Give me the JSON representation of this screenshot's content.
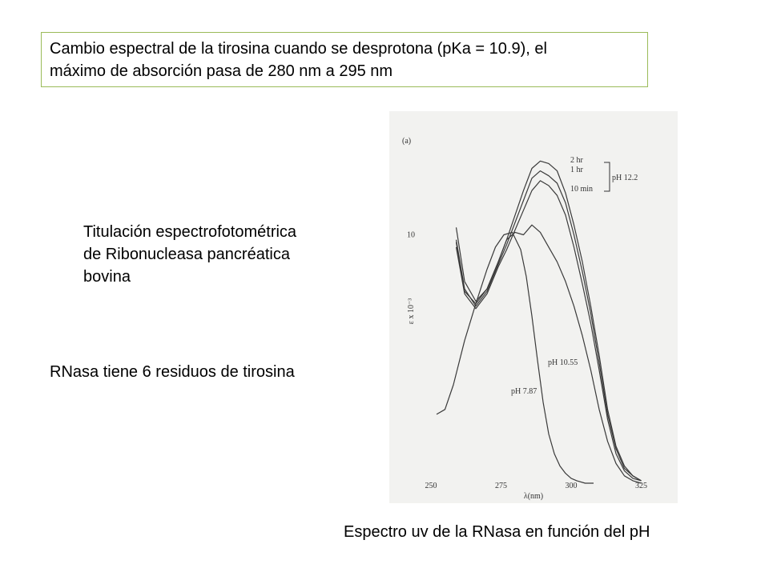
{
  "header_box": {
    "line1": "Cambio espectral de la tirosina cuando se desprotona (pKa = 10.9), el",
    "line2": "máximo de absorción pasa de 280 nm a 295 nm"
  },
  "titulacion": {
    "line1": "Titulación espectrofotométrica",
    "line2": "de Ribonucleasa pancréatica",
    "line3": "bovina"
  },
  "rnasa_note": "RNasa tiene 6 residuos de tirosina",
  "caption": "Espectro uv de la RNasa en función del pH",
  "chart_data": {
    "type": "line",
    "panel_label": "(a)",
    "xlabel": "λ(nm)",
    "ylabel": "ε x 10⁻³",
    "x_ticks": [
      "250",
      "275",
      "300",
      "325"
    ],
    "y_ticks": [
      "10"
    ],
    "xlim": [
      250,
      326
    ],
    "ylim": [
      0,
      13.5
    ],
    "series": [
      {
        "name": "2 hr",
        "x": [
          259,
          262,
          266,
          270,
          274,
          277,
          280,
          283,
          286,
          289,
          292,
          295,
          298,
          301,
          304,
          307,
          310,
          313,
          316,
          319,
          322,
          325
        ],
        "y": [
          10.4,
          8.2,
          7.4,
          7.9,
          9.0,
          9.9,
          10.9,
          11.9,
          12.8,
          13.1,
          13.0,
          12.7,
          11.8,
          10.5,
          9.0,
          7.2,
          5.2,
          3.0,
          1.5,
          0.7,
          0.3,
          0.1
        ]
      },
      {
        "name": "1 hr",
        "x": [
          259,
          262,
          266,
          270,
          274,
          277,
          280,
          283,
          286,
          289,
          292,
          295,
          298,
          301,
          304,
          307,
          310,
          313,
          316,
          319,
          322,
          325
        ],
        "y": [
          9.9,
          7.9,
          7.2,
          7.8,
          8.9,
          9.7,
          10.6,
          11.5,
          12.4,
          12.7,
          12.5,
          12.2,
          11.4,
          10.1,
          8.6,
          6.9,
          4.9,
          2.8,
          1.4,
          0.6,
          0.3,
          0.1
        ]
      },
      {
        "name": "10 min",
        "x": [
          259,
          262,
          266,
          270,
          274,
          277,
          280,
          283,
          286,
          289,
          292,
          295,
          298,
          301,
          304,
          307,
          310,
          313,
          316,
          319,
          322,
          325
        ],
        "y": [
          9.6,
          7.7,
          7.1,
          7.7,
          8.8,
          9.5,
          10.3,
          11.1,
          11.9,
          12.3,
          12.1,
          11.7,
          10.9,
          9.6,
          8.1,
          6.5,
          4.6,
          2.6,
          1.2,
          0.5,
          0.2,
          0.1
        ]
      },
      {
        "name": "pH 10.55",
        "x": [
          259,
          262,
          266,
          270,
          274,
          277,
          280,
          283,
          286,
          289,
          292,
          295,
          298,
          301,
          304,
          307,
          310,
          313,
          316,
          319,
          322,
          325
        ],
        "y": [
          9.8,
          7.8,
          7.3,
          7.9,
          9.0,
          9.9,
          10.2,
          10.1,
          10.5,
          10.2,
          9.6,
          9.0,
          8.2,
          7.2,
          6.0,
          4.6,
          3.0,
          1.7,
          0.8,
          0.3,
          0.1,
          0.0
        ]
      },
      {
        "name": "pH 7.87",
        "x": [
          252,
          255,
          258,
          262,
          266,
          270,
          273,
          276,
          279,
          282,
          284,
          286,
          288,
          290,
          292,
          294,
          296,
          298,
          300,
          302,
          305,
          308
        ],
        "y": [
          2.8,
          3.0,
          4.0,
          5.8,
          7.3,
          8.7,
          9.6,
          10.1,
          10.2,
          9.5,
          8.4,
          6.8,
          5.0,
          3.3,
          2.0,
          1.2,
          0.7,
          0.4,
          0.2,
          0.1,
          0.0,
          0.0
        ]
      }
    ],
    "annotations": [
      "pH 12.2",
      "pH 10.55",
      "pH 7.87"
    ],
    "grid": false
  }
}
